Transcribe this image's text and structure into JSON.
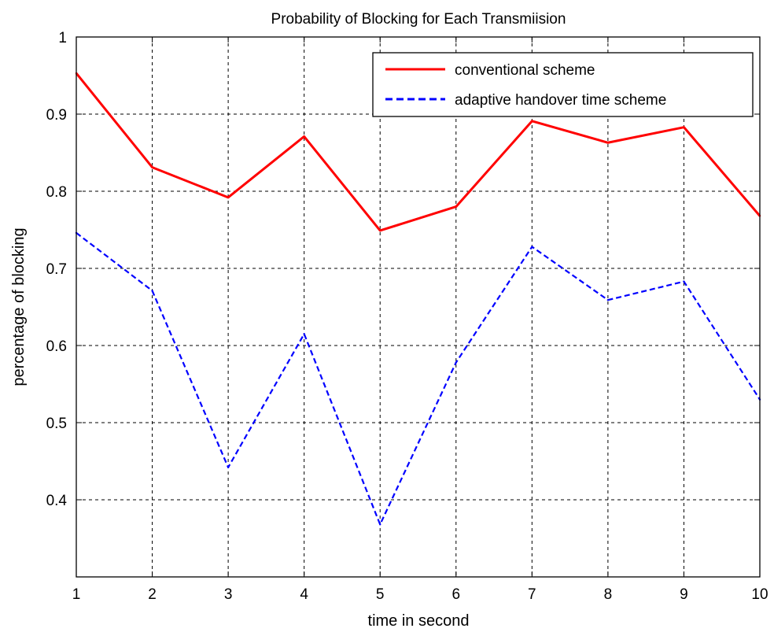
{
  "chart_data": {
    "type": "line",
    "title": "Probability of Blocking for Each Transmiision",
    "xlabel": "time in second",
    "ylabel": "percentage of blocking",
    "xlim": [
      1,
      10
    ],
    "ylim": [
      0.3,
      1.0
    ],
    "xticks": [
      1,
      2,
      3,
      4,
      5,
      6,
      7,
      8,
      9,
      10
    ],
    "yticks": [
      0.4,
      0.5,
      0.6,
      0.7,
      0.8,
      0.9,
      1
    ],
    "grid": true,
    "legend_position": "top-right",
    "x": [
      1,
      2,
      3,
      4,
      5,
      6,
      7,
      8,
      9,
      10
    ],
    "series": [
      {
        "name": "conventional scheme",
        "values": [
          0.953,
          0.831,
          0.792,
          0.871,
          0.749,
          0.78,
          0.891,
          0.863,
          0.883,
          0.768
        ],
        "color": "#ff0000",
        "style": "solid"
      },
      {
        "name": "adaptive handover time scheme",
        "values": [
          0.746,
          0.671,
          0.442,
          0.615,
          0.368,
          0.578,
          0.728,
          0.659,
          0.683,
          0.53
        ],
        "color": "#0000ff",
        "style": "dashed"
      }
    ]
  }
}
